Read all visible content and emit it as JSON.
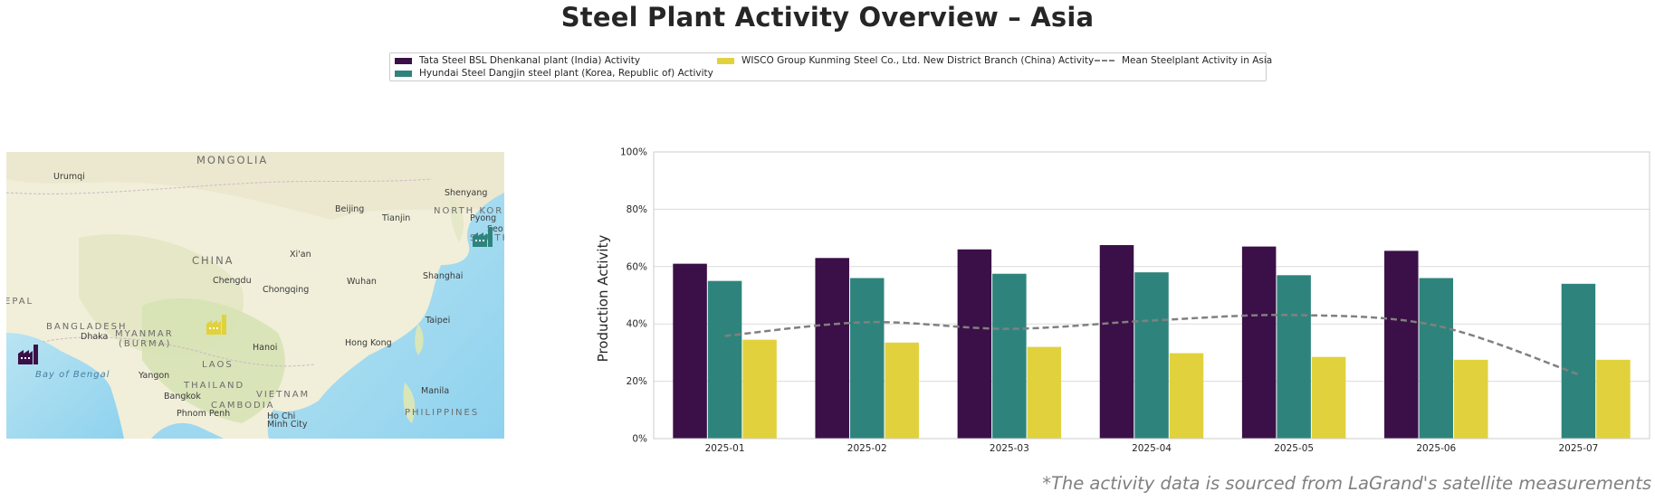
{
  "title": "Steel Plant Activity Overview – Asia",
  "footnote": "*The activity data is sourced from LaGrand's satellite measurements",
  "legend": [
    {
      "label": "Tata Steel BSL Dhenkanal plant (India) Activity",
      "color": "#3b0f47",
      "kind": "bar"
    },
    {
      "label": "Hyundai Steel Dangjin steel plant (Korea, Republic of) Activity",
      "color": "#2e847c",
      "kind": "bar"
    },
    {
      "label": "WISCO Group Kunming Steel Co., Ltd. New District Branch (China) Activity",
      "color": "#e1d23d",
      "kind": "bar"
    },
    {
      "label": "Mean Steelplant Activity in Asia",
      "color": "#808080",
      "kind": "dashed-line"
    }
  ],
  "map": {
    "labels": {
      "mongolia": "MONGOLIA",
      "urumqi": "Urumqi",
      "beijing": "Beijing",
      "tianjin": "Tianjin",
      "shenyang": "Shenyang",
      "north_korea": "NORTH KOR",
      "pyongyang": "Pyong",
      "seoul": "Seo",
      "south_korea": "SOUTH",
      "china": "CHINA",
      "xian": "Xi'an",
      "chengdu": "Chengdu",
      "chongqing": "Chongqing",
      "wuhan": "Wuhan",
      "shanghai": "Shanghai",
      "nepal": "EPAL",
      "bangladesh": "BANGLADESH",
      "dhaka": "Dhaka",
      "myanmar": "MYANMAR",
      "burma": "(BURMA)",
      "taipei": "Taipei",
      "hanoi": "Hanoi",
      "hong_kong": "Hong Kong",
      "laos": "LAOS",
      "bay_of_bengal": "Bay of Bengal",
      "yangon": "Yangon",
      "thailand": "THAILAND",
      "vietnam": "VIETNAM",
      "bangkok": "Bangkok",
      "manila": "Manila",
      "cambodia": "CAMBODIA",
      "phnom_penh": "Phnom Penh",
      "ho_chi": "Ho Chi",
      "minh_city": "Minh City",
      "philippines": "PHILIPPINES"
    },
    "markers": [
      {
        "plant": "Tata Steel BSL Dhenkanal plant (India)",
        "color": "#3b0f47",
        "icon": "factory-icon"
      },
      {
        "plant": "Hyundai Steel Dangjin steel plant (Korea, Republic of)",
        "color": "#2e847c",
        "icon": "factory-icon"
      },
      {
        "plant": "WISCO Group Kunming Steel Co., Ltd. New District Branch (China)",
        "color": "#e1d23d",
        "icon": "factory-icon"
      }
    ]
  },
  "chart_data": {
    "type": "bar",
    "categories": [
      "2025-01",
      "2025-02",
      "2025-03",
      "2025-04",
      "2025-05",
      "2025-06",
      "2025-07"
    ],
    "series": [
      {
        "name": "Tata Steel BSL Dhenkanal plant (India) Activity",
        "color": "#3b0f47",
        "values": [
          61,
          63,
          66,
          67.5,
          67,
          65.5,
          null
        ]
      },
      {
        "name": "Hyundai Steel Dangjin steel plant (Korea, Republic of) Activity",
        "color": "#2e847c",
        "values": [
          55,
          56,
          57.5,
          58,
          57,
          56,
          54
        ]
      },
      {
        "name": "WISCO Group Kunming Steel Co., Ltd. New District Branch (China) Activity",
        "color": "#e1d23d",
        "values": [
          34.5,
          33.5,
          32,
          29.8,
          28.5,
          27.5,
          27.5
        ]
      }
    ],
    "line": {
      "name": "Mean Steelplant Activity in Asia",
      "color": "#808080",
      "style": "dashed",
      "values": [
        35.8,
        40.6,
        38.3,
        41.2,
        43.1,
        39.4,
        22.4
      ]
    },
    "ylabel": "Production Activity",
    "xlabel": "",
    "ylim": [
      0,
      100
    ],
    "yticks": [
      "0%",
      "20%",
      "40%",
      "60%",
      "80%",
      "100%"
    ],
    "grid": "horizontal",
    "legend_position": "top-center"
  }
}
